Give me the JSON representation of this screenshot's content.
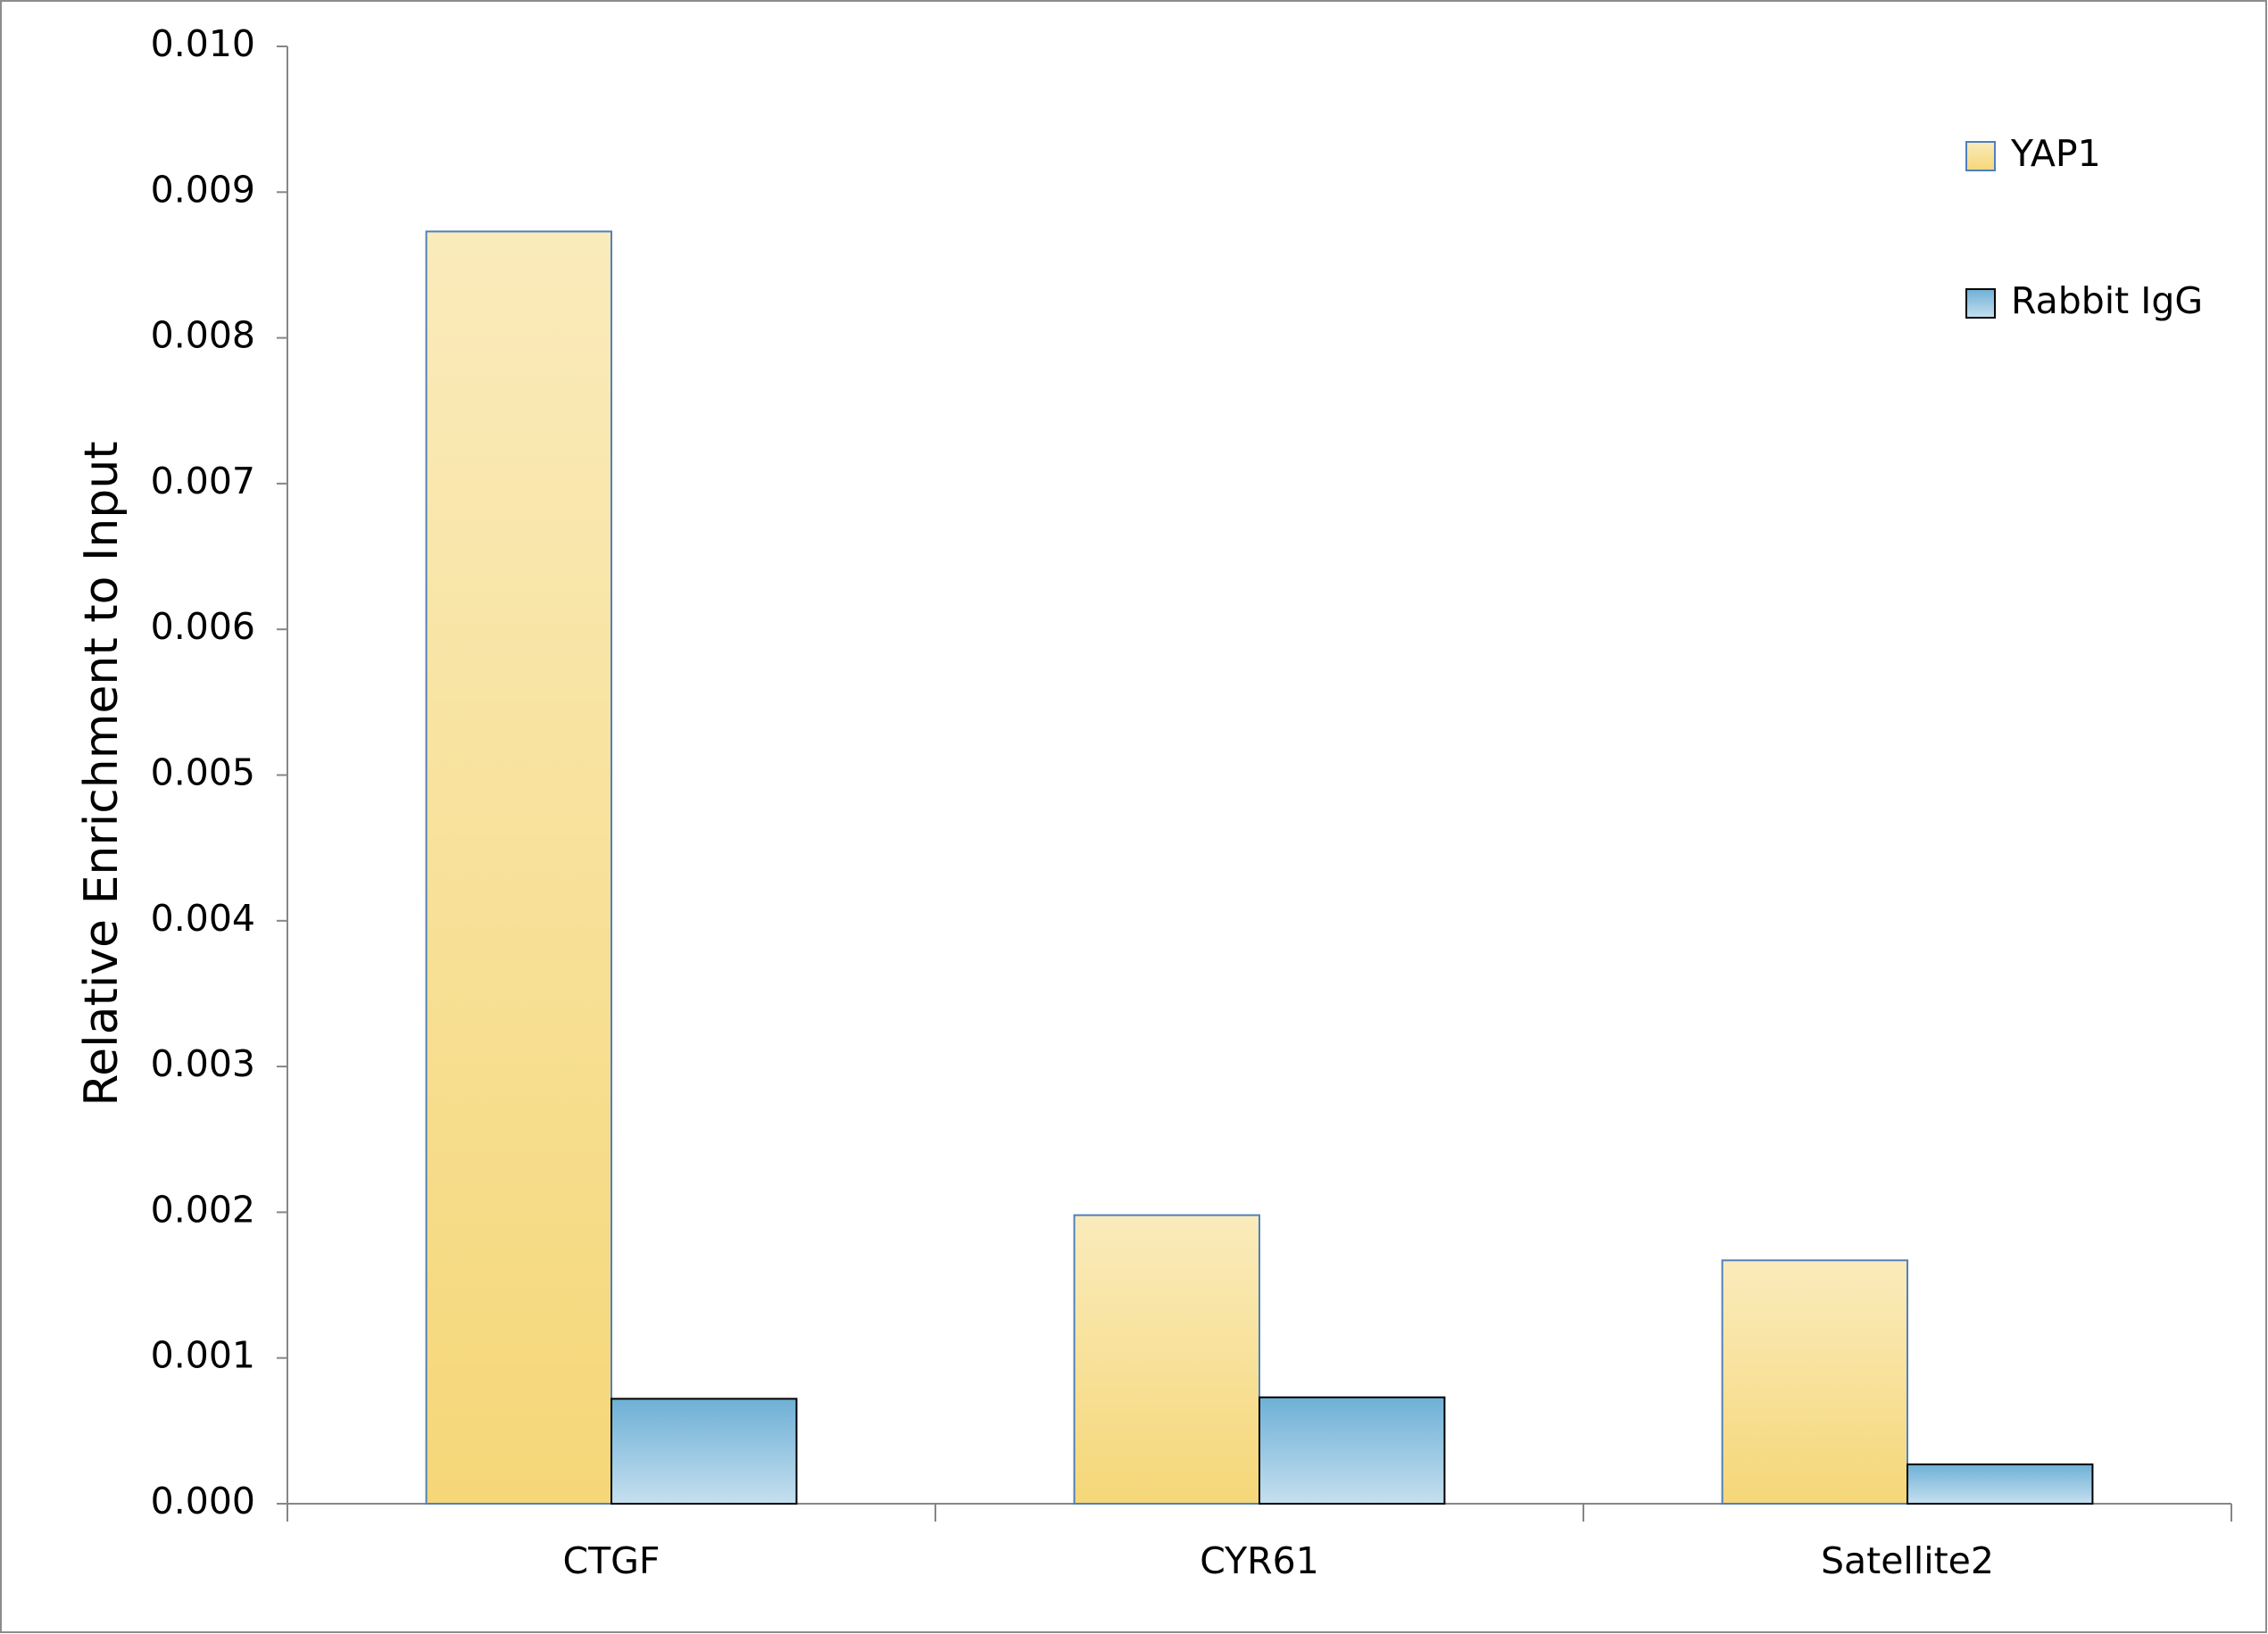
{
  "chart_data": {
    "type": "bar",
    "y_label": "Relative Enrichment to Input",
    "categories": [
      "CTGF",
      "CYR61",
      "Satellite2"
    ],
    "series": [
      {
        "name": "YAP1",
        "color": "#f5d778",
        "values": [
          0.00873,
          0.00198,
          0.00167
        ]
      },
      {
        "name": "Rabbit IgG",
        "color": "#6eb0d6",
        "values": [
          0.00072,
          0.00073,
          0.00027
        ]
      }
    ],
    "ylim": [
      0,
      0.01
    ],
    "yticks": [
      {
        "value": 0,
        "label": "0.000"
      },
      0.001,
      0.002,
      0.003,
      0.004,
      0.005,
      0.006,
      0.007,
      0.008,
      0.009,
      {
        "value": 0.01,
        "label": "0.010"
      }
    ],
    "legend": "upper right"
  }
}
